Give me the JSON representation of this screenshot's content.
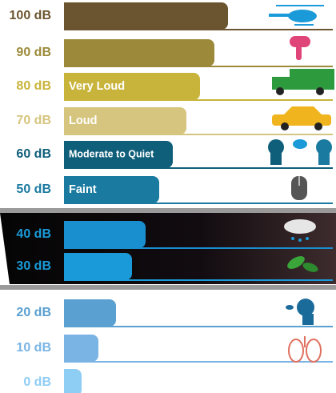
{
  "rows": [
    {
      "level": "100 dB"
    },
    {
      "level": "90 dB"
    },
    {
      "level": "80 dB",
      "label": "Very Loud"
    },
    {
      "level": "70 dB",
      "label": "Loud"
    },
    {
      "level": "60 dB",
      "label": "Moderate to Quiet"
    },
    {
      "level": "50 dB",
      "label": "Faint"
    },
    {
      "level": "40 dB"
    },
    {
      "level": "30 dB"
    },
    {
      "level": "20 dB"
    },
    {
      "level": "10 dB"
    },
    {
      "level": "0 dB"
    }
  ]
}
